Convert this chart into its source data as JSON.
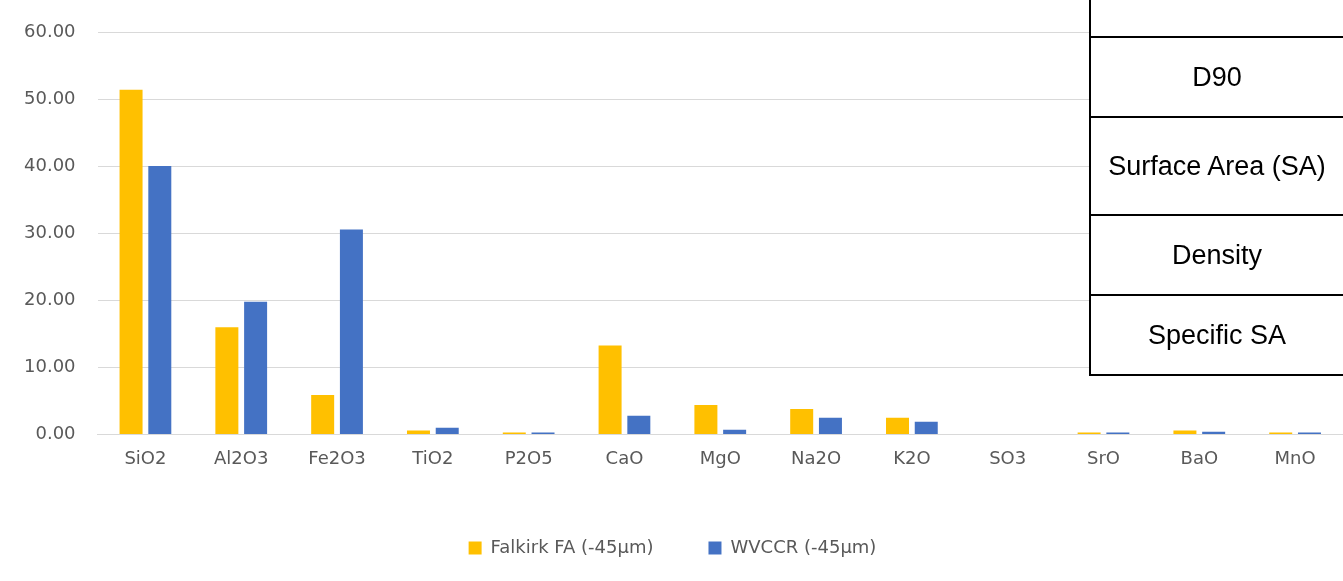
{
  "chart_data": [
    {
      "type": "bar",
      "categories": [
        "SiO2",
        "Al2O3",
        "Fe2O3",
        "TiO2",
        "P2O5",
        "CaO",
        "MgO",
        "Na2O",
        "K2O",
        "SO3",
        "SrO",
        "BaO",
        "MnO"
      ],
      "series": [
        {
          "name": "Falkirk FA (-45µm)",
          "color": "#ffc000",
          "values": [
            51.5,
            16.0,
            5.9,
            0.6,
            0.3,
            13.3,
            4.4,
            3.8,
            2.5,
            0,
            0.3,
            0.6,
            0.3
          ]
        },
        {
          "name": "WVCCR (-45µm)",
          "color": "#4472c4",
          "values": [
            40.1,
            19.8,
            30.6,
            1.0,
            0.3,
            2.8,
            0.7,
            2.5,
            1.9,
            0,
            0.3,
            0.4,
            0.3
          ]
        }
      ],
      "ylim": [
        0,
        60
      ],
      "yticks": [
        {
          "value": 0,
          "label": "0.00"
        },
        {
          "value": 10,
          "label": "10.00"
        },
        {
          "value": 20,
          "label": "20.00"
        },
        {
          "value": 30,
          "label": "30.00"
        },
        {
          "value": 40,
          "label": "40.00"
        },
        {
          "value": 50,
          "label": "50.00"
        },
        {
          "value": 60,
          "label": "60.00"
        }
      ],
      "grid": "y",
      "legend": "bottom"
    },
    {
      "type": "other",
      "annotations": [
        "D90",
        "Surface Area (SA)",
        "Density",
        "Specific SA"
      ]
    }
  ]
}
